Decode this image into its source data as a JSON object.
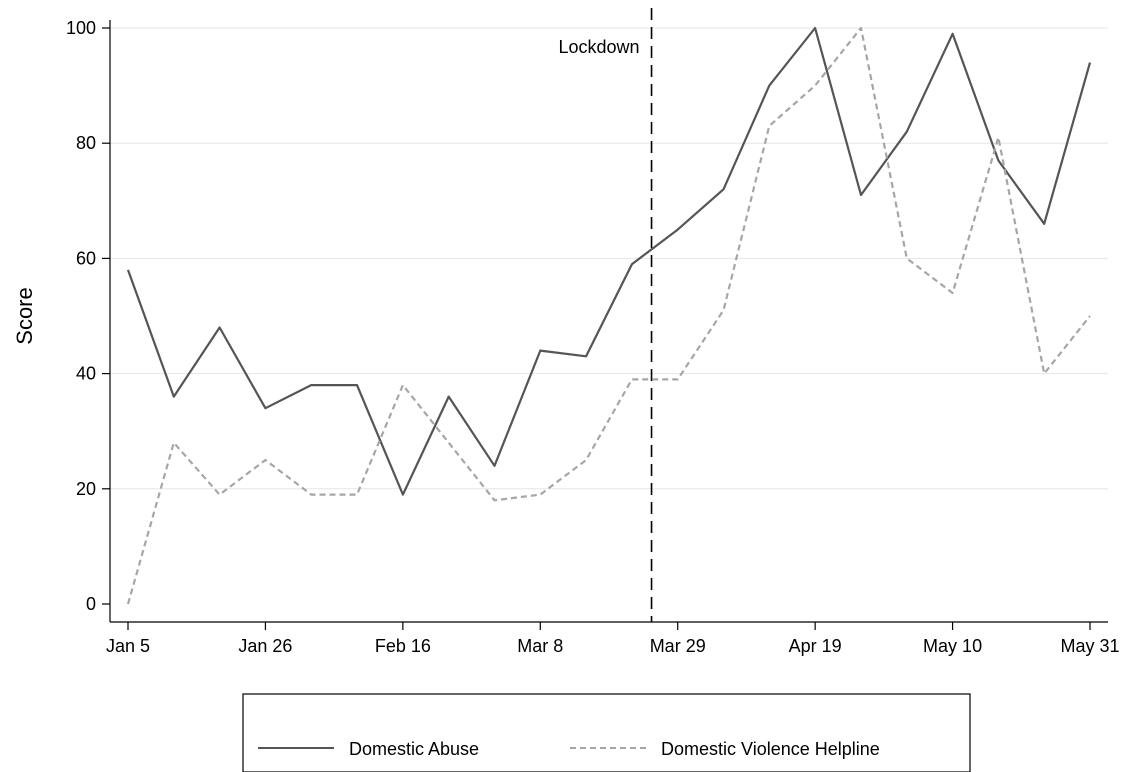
{
  "chart_data": {
    "type": "line",
    "title": "",
    "xlabel": "",
    "ylabel": "Score",
    "x": [
      "2020-01-05",
      "2020-01-12",
      "2020-01-19",
      "2020-01-26",
      "2020-02-02",
      "2020-02-09",
      "2020-02-16",
      "2020-02-23",
      "2020-03-01",
      "2020-03-08",
      "2020-03-15",
      "2020-03-22",
      "2020-03-29",
      "2020-04-05",
      "2020-04-12",
      "2020-04-19",
      "2020-04-26",
      "2020-05-03",
      "2020-05-10",
      "2020-05-17",
      "2020-05-24",
      "2020-05-31"
    ],
    "xticks": [
      {
        "date": "2020-01-05",
        "label": "Jan 5"
      },
      {
        "date": "2020-01-26",
        "label": "Jan 26"
      },
      {
        "date": "2020-02-16",
        "label": "Feb 16"
      },
      {
        "date": "2020-03-08",
        "label": "Mar 8"
      },
      {
        "date": "2020-03-29",
        "label": "Mar 29"
      },
      {
        "date": "2020-04-19",
        "label": "Apr 19"
      },
      {
        "date": "2020-05-10",
        "label": "May 10"
      },
      {
        "date": "2020-05-31",
        "label": "May 31"
      }
    ],
    "yticks": [
      0,
      20,
      40,
      60,
      80,
      100
    ],
    "ylim": [
      0,
      100
    ],
    "grid": true,
    "legend": "bottom",
    "series": [
      {
        "name": "Domestic Abuse",
        "color": "#555555",
        "style": "solid",
        "values": [
          58,
          36,
          48,
          34,
          38,
          38,
          19,
          36,
          24,
          44,
          43,
          59,
          65,
          72,
          90,
          100,
          71,
          82,
          99,
          77,
          66,
          94
        ]
      },
      {
        "name": "Domestic Violence Helpline",
        "color": "#a6a6a6",
        "style": "dashed",
        "values": [
          0,
          28,
          19,
          25,
          19,
          19,
          38,
          28,
          18,
          19,
          25,
          39,
          39,
          51,
          83,
          90,
          100,
          60,
          54,
          81,
          40,
          50
        ]
      }
    ],
    "annotations": [
      {
        "type": "vline",
        "date": "2020-03-25",
        "label": "Lockdown",
        "color": "#000000",
        "style": "dashed"
      }
    ]
  }
}
